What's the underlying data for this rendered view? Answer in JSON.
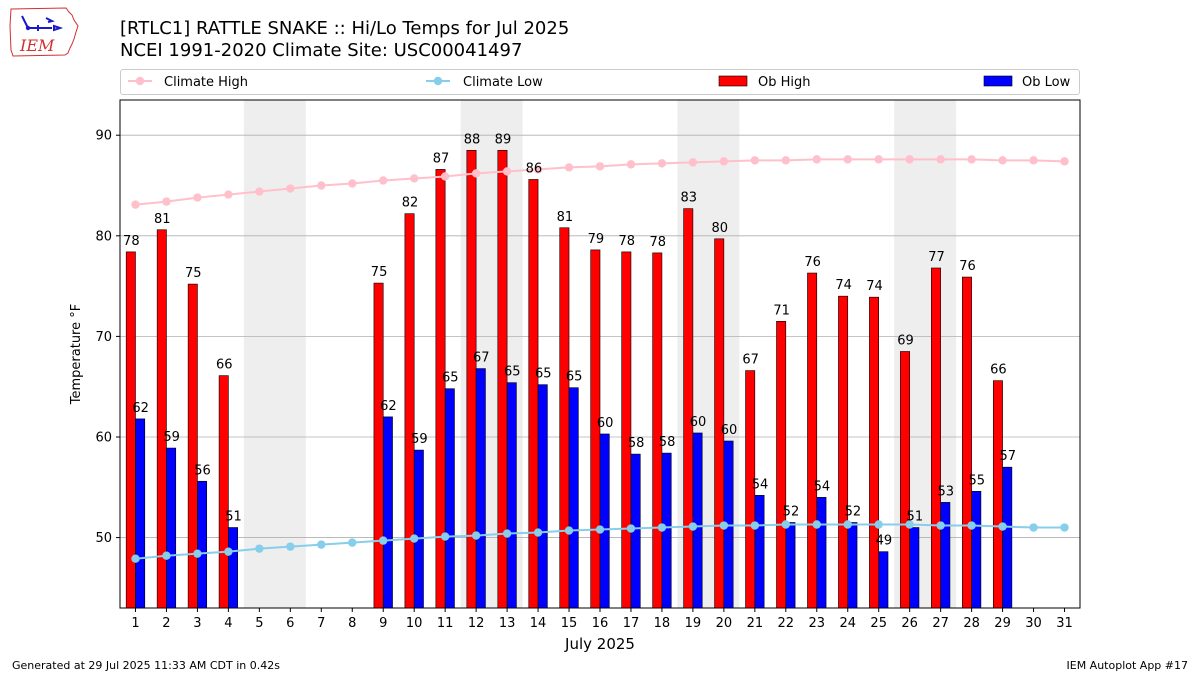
{
  "header": {
    "title_line1": "[RTLC1] RATTLE SNAKE :: Hi/Lo Temps for Jul 2025",
    "title_line2": "NCEI 1991-2020 Climate Site: USC00041497"
  },
  "logo": {
    "text": "IEM",
    "icon": "iowa-state-outline-logo"
  },
  "footer": {
    "left": "Generated at 29 Jul 2025 11:33 AM CDT in 0.42s",
    "right": "IEM Autoplot App #17"
  },
  "colors": {
    "ob_high": "#ff0000",
    "ob_low": "#0000ff",
    "climate_high": "#ffc0cb",
    "climate_low": "#87ceeb",
    "weekend_shade": "#eeeeee",
    "grid": "#b0b0b0"
  },
  "chart_data": {
    "type": "bar",
    "xlabel": "July 2025",
    "ylabel": "Temperature °F",
    "ylim": [
      43,
      93.5
    ],
    "yticks": [
      50,
      60,
      70,
      80,
      90
    ],
    "grid": "horizontal",
    "legend_position": "top",
    "x": [
      1,
      2,
      3,
      4,
      5,
      6,
      7,
      8,
      9,
      10,
      11,
      12,
      13,
      14,
      15,
      16,
      17,
      18,
      19,
      20,
      21,
      22,
      23,
      24,
      25,
      26,
      27,
      28,
      29,
      30,
      31
    ],
    "shaded_days": [
      [
        5,
        6
      ],
      [
        12,
        13
      ],
      [
        19,
        20
      ],
      [
        26,
        27
      ]
    ],
    "series": [
      {
        "name": "Climate High",
        "kind": "line",
        "values": [
          83.1,
          83.4,
          83.8,
          84.1,
          84.4,
          84.7,
          85.0,
          85.2,
          85.5,
          85.7,
          85.9,
          86.2,
          86.4,
          86.6,
          86.8,
          86.9,
          87.1,
          87.2,
          87.3,
          87.4,
          87.5,
          87.5,
          87.6,
          87.6,
          87.6,
          87.6,
          87.6,
          87.6,
          87.5,
          87.5,
          87.4
        ]
      },
      {
        "name": "Climate Low",
        "kind": "line",
        "values": [
          47.9,
          48.2,
          48.4,
          48.6,
          48.9,
          49.1,
          49.3,
          49.5,
          49.7,
          49.9,
          50.1,
          50.2,
          50.4,
          50.5,
          50.7,
          50.8,
          50.9,
          51.0,
          51.1,
          51.2,
          51.2,
          51.3,
          51.3,
          51.3,
          51.3,
          51.3,
          51.2,
          51.2,
          51.1,
          51.0,
          51.0
        ]
      },
      {
        "name": "Ob High",
        "kind": "bar",
        "values": [
          78.4,
          80.6,
          75.2,
          66.1,
          null,
          null,
          null,
          null,
          75.3,
          82.2,
          86.6,
          88.5,
          88.5,
          85.6,
          80.8,
          78.6,
          78.4,
          78.3,
          82.7,
          79.7,
          66.6,
          71.5,
          76.3,
          74.0,
          73.9,
          68.5,
          76.8,
          75.9,
          65.6,
          null,
          null
        ],
        "labels": [
          "78",
          "81",
          "75",
          "66",
          "",
          "",
          "",
          "",
          "75",
          "82",
          "87",
          "88",
          "89",
          "86",
          "81",
          "79",
          "78",
          "78",
          "83",
          "80",
          "67",
          "71",
          "76",
          "74",
          "74",
          "69",
          "77",
          "76",
          "66",
          "",
          ""
        ]
      },
      {
        "name": "Ob Low",
        "kind": "bar",
        "values": [
          61.8,
          58.9,
          55.6,
          51.0,
          null,
          null,
          null,
          null,
          62.0,
          58.7,
          64.8,
          66.8,
          65.4,
          65.2,
          64.9,
          60.3,
          58.3,
          58.4,
          60.4,
          59.6,
          54.2,
          51.5,
          54.0,
          51.5,
          48.6,
          51.0,
          53.5,
          54.6,
          57.0,
          null,
          null
        ],
        "labels": [
          "62",
          "59",
          "56",
          "51",
          "",
          "",
          "",
          "",
          "62",
          "59",
          "65",
          "67",
          "65",
          "65",
          "65",
          "60",
          "58",
          "58",
          "60",
          "60",
          "54",
          "52",
          "54",
          "52",
          "49",
          "51",
          "53",
          "55",
          "57",
          "",
          ""
        ]
      }
    ]
  }
}
